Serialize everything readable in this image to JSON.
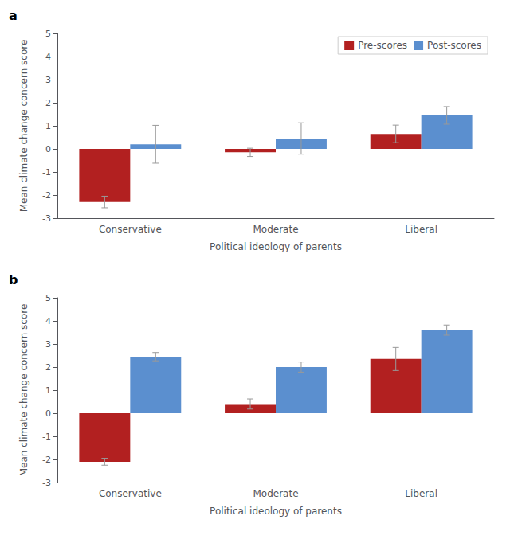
{
  "chart_data": [
    {
      "type": "bar",
      "title": "a",
      "xlabel": "Political ideology of parents",
      "ylabel": "Mean climate change concern score",
      "categories": [
        "Conservative",
        "Moderate",
        "Liberal"
      ],
      "series": [
        {
          "name": "Pre-scores",
          "color": "#b22020",
          "values": [
            -2.3,
            -0.15,
            0.65
          ],
          "errors": [
            0.25,
            0.18,
            0.38
          ]
        },
        {
          "name": "Post-scores",
          "color": "#5b8fcf",
          "values": [
            0.2,
            0.45,
            1.45
          ],
          "errors": [
            0.82,
            0.68,
            0.38
          ]
        }
      ],
      "ylim": [
        -3,
        5
      ],
      "yticks": [
        -3,
        -2,
        -1,
        0,
        1,
        2,
        3,
        4,
        5
      ],
      "grid": false,
      "legend": "upper right"
    },
    {
      "type": "bar",
      "title": "b",
      "xlabel": "Political ideology of parents",
      "ylabel": "Mean climate change concern score",
      "categories": [
        "Conservative",
        "Moderate",
        "Liberal"
      ],
      "series": [
        {
          "name": "Pre-scores",
          "color": "#b22020",
          "values": [
            -2.1,
            0.4,
            2.35
          ],
          "errors": [
            0.15,
            0.22,
            0.5
          ]
        },
        {
          "name": "Post-scores",
          "color": "#5b8fcf",
          "values": [
            2.45,
            2.0,
            3.6
          ],
          "errors": [
            0.18,
            0.22,
            0.22
          ]
        }
      ],
      "ylim": [
        -3,
        5
      ],
      "yticks": [
        -3,
        -2,
        -1,
        0,
        1,
        2,
        3,
        4,
        5
      ],
      "grid": false
    }
  ]
}
